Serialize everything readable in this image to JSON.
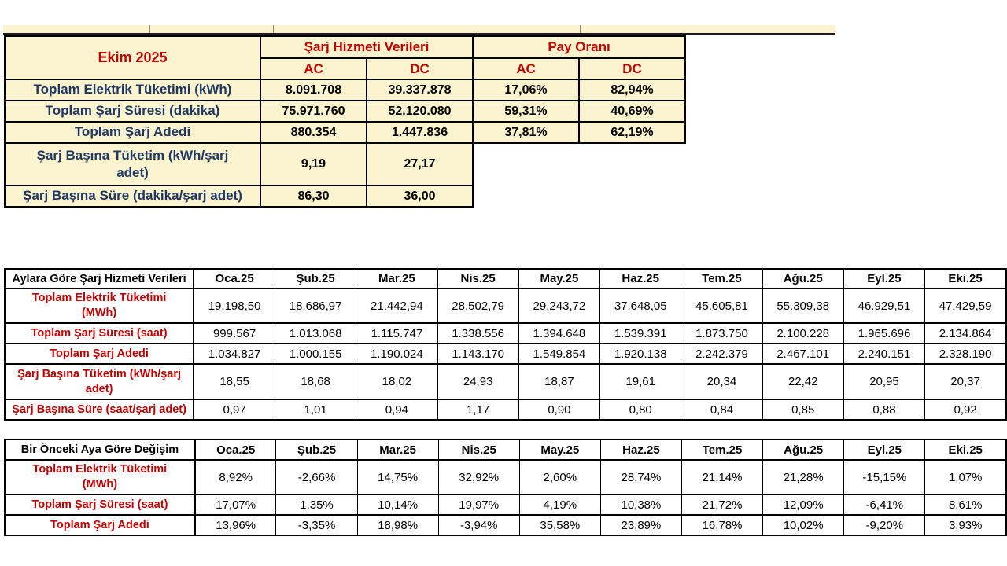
{
  "colors": {
    "accent_red": "#C00000",
    "accent_blue": "#1F3864",
    "cell_yellow": "#FBF4CE",
    "border_black": "#000000",
    "page_background": "#FFFFFF"
  },
  "summary_table": {
    "title": "Ekim 2025",
    "group_headers": [
      "Şarj Hizmeti Verileri",
      "Pay Oranı"
    ],
    "sub_headers": [
      "AC",
      "DC",
      "AC",
      "DC"
    ],
    "rows": [
      {
        "label": "Toplam Elektrik Tüketimi (kWh)",
        "ac": "8.091.708",
        "dc": "39.337.878",
        "pay_ac": "17,06%",
        "pay_dc": "82,94%"
      },
      {
        "label": "Toplam Şarj Süresi (dakika)",
        "ac": "75.971.760",
        "dc": "52.120.080",
        "pay_ac": "59,31%",
        "pay_dc": "40,69%"
      },
      {
        "label": "Toplam Şarj Adedi",
        "ac": "880.354",
        "dc": "1.447.836",
        "pay_ac": "37,81%",
        "pay_dc": "62,19%"
      },
      {
        "label": "Şarj Başına Tüketim (kWh/şarj\nadet)",
        "ac": "9,19",
        "dc": "27,17",
        "pay_ac": "",
        "pay_dc": ""
      },
      {
        "label": "Şarj Başına Süre (dakika/şarj adet)",
        "ac": "86,30",
        "dc": "36,00",
        "pay_ac": "",
        "pay_dc": ""
      }
    ]
  },
  "monthly_table": {
    "title": "Aylara Göre Şarj Hizmeti Verileri",
    "months": [
      "Oca.25",
      "Şub.25",
      "Mar.25",
      "Nis.25",
      "May.25",
      "Haz.25",
      "Tem.25",
      "Ağu.25",
      "Eyl.25",
      "Eki.25"
    ],
    "rows": [
      {
        "label": "Toplam Elektrik Tüketimi\n(MWh)",
        "values": [
          "19.198,50",
          "18.686,97",
          "21.442,94",
          "28.502,79",
          "29.243,72",
          "37.648,05",
          "45.605,81",
          "55.309,38",
          "46.929,51",
          "47.429,59"
        ]
      },
      {
        "label": "Toplam Şarj Süresi (saat)",
        "values": [
          "999.567",
          "1.013.068",
          "1.115.747",
          "1.338.556",
          "1.394.648",
          "1.539.391",
          "1.873.750",
          "2.100.228",
          "1.965.696",
          "2.134.864"
        ]
      },
      {
        "label": "Toplam Şarj Adedi",
        "values": [
          "1.034.827",
          "1.000.155",
          "1.190.024",
          "1.143.170",
          "1.549.854",
          "1.920.138",
          "2.242.379",
          "2.467.101",
          "2.240.151",
          "2.328.190"
        ]
      },
      {
        "label": "Şarj Başına Tüketim (kWh/şarj\nadet)",
        "values": [
          "18,55",
          "18,68",
          "18,02",
          "24,93",
          "18,87",
          "19,61",
          "20,34",
          "22,42",
          "20,95",
          "20,37"
        ]
      },
      {
        "label": "Şarj Başına Süre (saat/şarj adet)",
        "values": [
          "0,97",
          "1,01",
          "0,94",
          "1,17",
          "0,90",
          "0,80",
          "0,84",
          "0,85",
          "0,88",
          "0,92"
        ]
      }
    ]
  },
  "change_table": {
    "title": "Bir Önceki Aya Göre Değişim",
    "months": [
      "Oca.25",
      "Şub.25",
      "Mar.25",
      "Nis.25",
      "May.25",
      "Haz.25",
      "Tem.25",
      "Ağu.25",
      "Eyl.25",
      "Eki.25"
    ],
    "rows": [
      {
        "label": "Toplam Elektrik Tüketimi\n(MWh)",
        "values": [
          "8,92%",
          "-2,66%",
          "14,75%",
          "32,92%",
          "2,60%",
          "28,74%",
          "21,14%",
          "21,28%",
          "-15,15%",
          "1,07%"
        ]
      },
      {
        "label": "Toplam Şarj Süresi (saat)",
        "values": [
          "17,07%",
          "1,35%",
          "10,14%",
          "19,97%",
          "4,19%",
          "10,38%",
          "21,72%",
          "12,09%",
          "-6,41%",
          "8,61%"
        ]
      },
      {
        "label": "Toplam Şarj Adedi",
        "values": [
          "13,96%",
          "-3,35%",
          "18,98%",
          "-3,94%",
          "35,58%",
          "23,89%",
          "16,78%",
          "10,02%",
          "-9,20%",
          "3,93%"
        ]
      }
    ]
  }
}
